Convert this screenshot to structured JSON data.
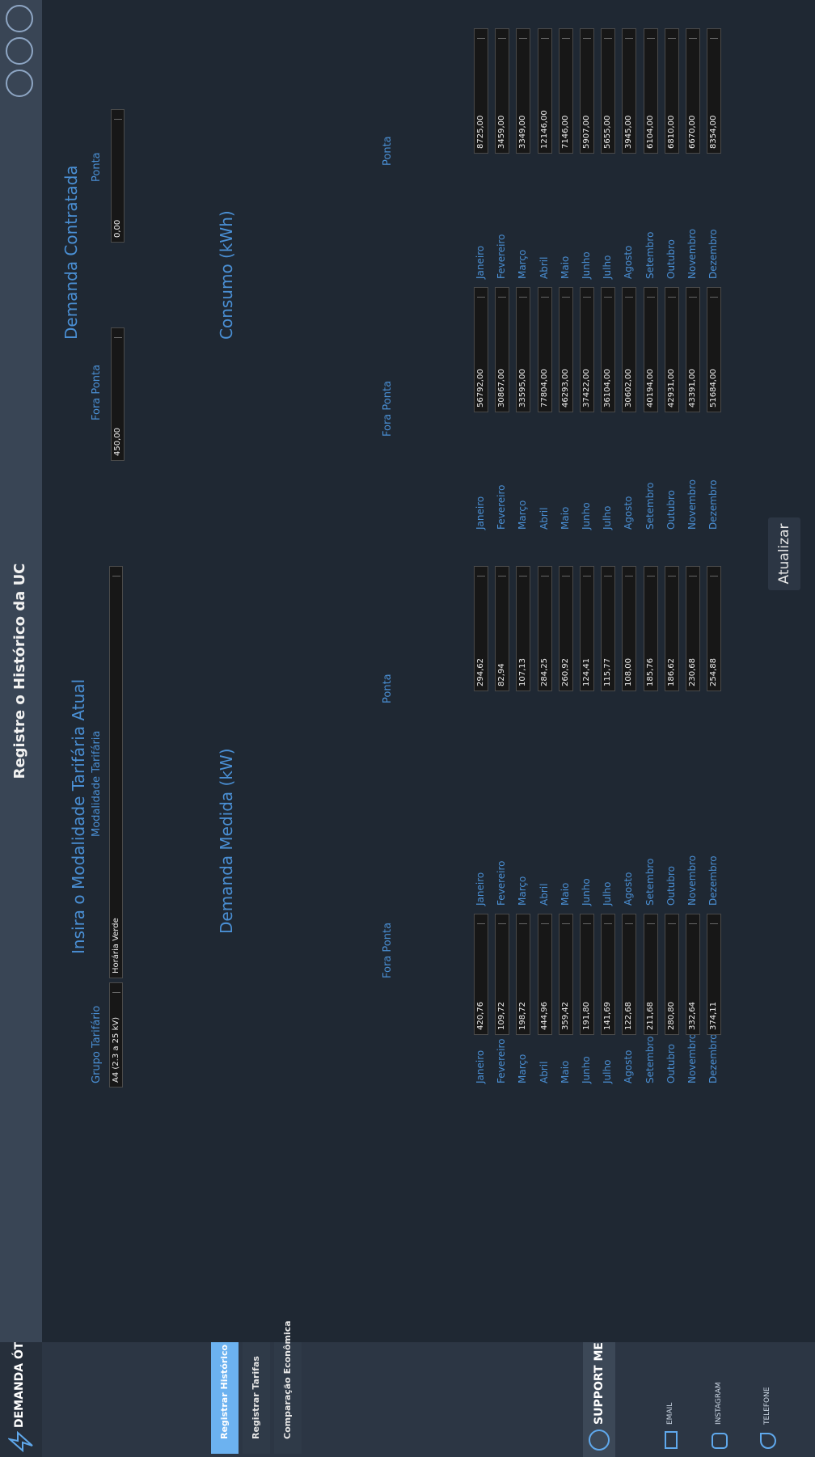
{
  "window": {
    "title": "Registre o Histórico da UC"
  },
  "sidebar": {
    "brand": "DEMANDA ÓTIMA",
    "nav": [
      "Registrar Histórico",
      "Registrar Tarifas",
      "Comparação Econômica"
    ],
    "support": "SUPPORT ME",
    "contacts": [
      "EMAIL",
      "INSTAGRAM",
      "TELEFONE"
    ]
  },
  "form": {
    "section_title": "Insira o Modalidade Tarifária Atual",
    "grupo_label": "Grupo Tarifário",
    "grupo_value": "A4 (2.3 a 25 kV)",
    "modalidade_label": "Modalidade Tarifária",
    "modalidade_value": "Horária Verde",
    "contratada_title": "Demanda Contratada",
    "contratada": [
      {
        "label": "Fora Ponta",
        "value": "450,00"
      },
      {
        "label": "Ponta",
        "value": "0,00"
      }
    ]
  },
  "months": [
    "Janeiro",
    "Fevereiro",
    "Março",
    "Abril",
    "Maio",
    "Junho",
    "Julho",
    "Agosto",
    "Setembro",
    "Outubro",
    "Novembro",
    "Dezembro"
  ],
  "demanda_medida": {
    "title": "Demanda Medida (kW)",
    "columns": [
      {
        "header": "Fora Ponta",
        "values": [
          "420,76",
          "109,72",
          "198,72",
          "444,96",
          "359,42",
          "191,80",
          "141,69",
          "122,68",
          "211,68",
          "280,80",
          "332,64",
          "374,11"
        ]
      },
      {
        "header": "Ponta",
        "values": [
          "294,62",
          "82,94",
          "107,13",
          "284,25",
          "260,92",
          "124,41",
          "115,77",
          "108,00",
          "185,76",
          "186,62",
          "230,68",
          "254,88"
        ]
      }
    ]
  },
  "consumo": {
    "title": "Consumo (kWh)",
    "columns": [
      {
        "header": "Fora Ponta",
        "values": [
          "56792,00",
          "30867,00",
          "33595,00",
          "77804,00",
          "46293,00",
          "37422,00",
          "36104,00",
          "30602,00",
          "40194,00",
          "42931,00",
          "43391,00",
          "51684,00"
        ]
      },
      {
        "header": "Ponta",
        "values": [
          "8725,00",
          "3459,00",
          "3349,00",
          "12146,00",
          "7146,00",
          "5907,00",
          "5655,00",
          "3945,00",
          "6104,00",
          "6810,00",
          "6670,00",
          "8354,00"
        ]
      }
    ]
  },
  "button": "Atualizar"
}
